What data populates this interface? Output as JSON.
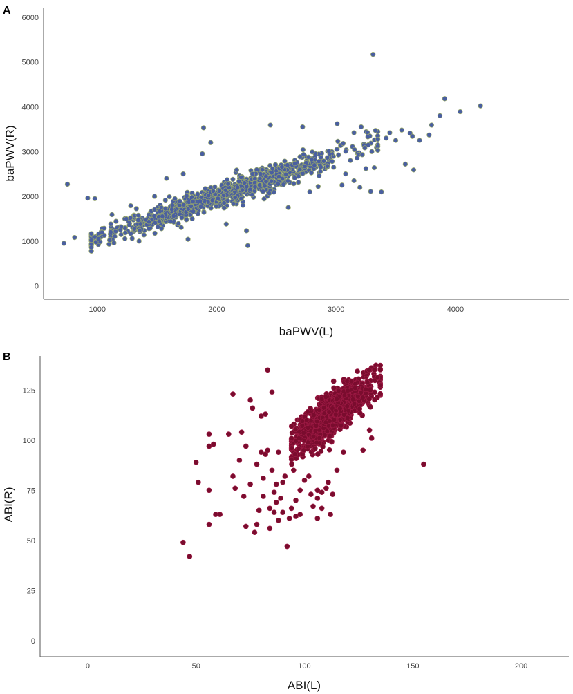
{
  "chart_data": [
    {
      "panel_label": "A",
      "type": "scatter",
      "xlabel": "baPWV(L)",
      "ylabel": "baPWV(R)",
      "xlim": [
        550,
        4950
      ],
      "ylim": [
        -300,
        6200
      ],
      "xticks": [
        1000,
        2000,
        3000,
        4000
      ],
      "yticks": [
        0,
        1000,
        2000,
        3000,
        4000,
        5000,
        6000
      ],
      "marker_fill": "#4a5fa0",
      "marker_stroke": "#9aa96b",
      "cluster": {
        "n": 900,
        "x_mean": 2050,
        "x_sd": 520,
        "x_min": 950,
        "x_max": 3350,
        "slope": 0.93,
        "intercept": 140,
        "noise_sd": 140,
        "seed": 11
      },
      "points": [
        [
          720,
          950
        ],
        [
          750,
          2270
        ],
        [
          810,
          1080
        ],
        [
          920,
          1960
        ],
        [
          980,
          1950
        ],
        [
          980,
          1090
        ],
        [
          1010,
          1050
        ],
        [
          1140,
          960
        ],
        [
          1200,
          1320
        ],
        [
          1280,
          1790
        ],
        [
          1350,
          1000
        ],
        [
          1480,
          2000
        ],
        [
          1580,
          2400
        ],
        [
          1640,
          1560
        ],
        [
          1720,
          2500
        ],
        [
          1760,
          1040
        ],
        [
          1880,
          2950
        ],
        [
          1890,
          3530
        ],
        [
          1950,
          3200
        ],
        [
          2080,
          1380
        ],
        [
          2220,
          1800
        ],
        [
          2250,
          1230
        ],
        [
          2260,
          900
        ],
        [
          2300,
          2500
        ],
        [
          2450,
          3590
        ],
        [
          2600,
          1750
        ],
        [
          2720,
          3550
        ],
        [
          2780,
          2100
        ],
        [
          2850,
          2220
        ],
        [
          2980,
          2650
        ],
        [
          3010,
          3620
        ],
        [
          3050,
          2250
        ],
        [
          3080,
          2500
        ],
        [
          3120,
          2800
        ],
        [
          3150,
          2350
        ],
        [
          3200,
          2200
        ],
        [
          3220,
          2930
        ],
        [
          3250,
          2620
        ],
        [
          3290,
          2110
        ],
        [
          3300,
          3000
        ],
        [
          3310,
          5170
        ],
        [
          3320,
          2640
        ],
        [
          3380,
          2100
        ],
        [
          3420,
          3300
        ],
        [
          3450,
          3420
        ],
        [
          3500,
          3250
        ],
        [
          3550,
          3480
        ],
        [
          3580,
          2720
        ],
        [
          3620,
          3410
        ],
        [
          3640,
          3340
        ],
        [
          3650,
          2590
        ],
        [
          3700,
          3250
        ],
        [
          3780,
          3370
        ],
        [
          3800,
          3590
        ],
        [
          3870,
          3800
        ],
        [
          3910,
          4180
        ],
        [
          4040,
          3890
        ],
        [
          4210,
          4020
        ],
        [
          3210,
          3550
        ],
        [
          3330,
          3470
        ],
        [
          3060,
          3180
        ],
        [
          2940,
          3010
        ],
        [
          3150,
          3420
        ]
      ]
    },
    {
      "panel_label": "B",
      "type": "scatter",
      "xlabel": "ABI(L)",
      "ylabel": "ABI(R)",
      "xlim": [
        -22,
        222
      ],
      "ylim": [
        -8,
        142
      ],
      "xticks": [
        0,
        50,
        100,
        150,
        200
      ],
      "yticks": [
        0,
        25,
        50,
        75,
        100,
        125
      ],
      "marker_fill": "#7a0c2e",
      "marker_stroke": "#9e1b45",
      "cluster": {
        "n": 1000,
        "x_mean": 113,
        "x_sd": 9.5,
        "x_min": 94,
        "x_max": 135,
        "slope": 0.78,
        "intercept": 25,
        "noise_sd": 5.2,
        "seed": 7
      },
      "points": [
        [
          44,
          49
        ],
        [
          47,
          42
        ],
        [
          50,
          89
        ],
        [
          51,
          79
        ],
        [
          56,
          103
        ],
        [
          56,
          97
        ],
        [
          56,
          75
        ],
        [
          56,
          58
        ],
        [
          58,
          98
        ],
        [
          59,
          63
        ],
        [
          61,
          63
        ],
        [
          65,
          103
        ],
        [
          67,
          123
        ],
        [
          67,
          82
        ],
        [
          68,
          76
        ],
        [
          70,
          90
        ],
        [
          71,
          104
        ],
        [
          72,
          72
        ],
        [
          73,
          97
        ],
        [
          73,
          57
        ],
        [
          75,
          120
        ],
        [
          75,
          78
        ],
        [
          76,
          116
        ],
        [
          77,
          54
        ],
        [
          78,
          88
        ],
        [
          78,
          58
        ],
        [
          79,
          65
        ],
        [
          80,
          112
        ],
        [
          80,
          94
        ],
        [
          81,
          81
        ],
        [
          81,
          72
        ],
        [
          82,
          113
        ],
        [
          82,
          93
        ],
        [
          83,
          135
        ],
        [
          83,
          95
        ],
        [
          84,
          66
        ],
        [
          84,
          56
        ],
        [
          85,
          124
        ],
        [
          85,
          85
        ],
        [
          86,
          74
        ],
        [
          86,
          64
        ],
        [
          87,
          78
        ],
        [
          87,
          69
        ],
        [
          88,
          60
        ],
        [
          88,
          94
        ],
        [
          89,
          71
        ],
        [
          90,
          79
        ],
        [
          90,
          64
        ],
        [
          91,
          82
        ],
        [
          92,
          47
        ],
        [
          93,
          61
        ],
        [
          94,
          66
        ],
        [
          95,
          85
        ],
        [
          96,
          70
        ],
        [
          96,
          62
        ],
        [
          98,
          75
        ],
        [
          98,
          63
        ],
        [
          100,
          80
        ],
        [
          102,
          82
        ],
        [
          103,
          73
        ],
        [
          104,
          67
        ],
        [
          106,
          61
        ],
        [
          106,
          71
        ],
        [
          106,
          75
        ],
        [
          108,
          66
        ],
        [
          108,
          74
        ],
        [
          110,
          76
        ],
        [
          112,
          63
        ],
        [
          113,
          73
        ],
        [
          111,
          79
        ],
        [
          115,
          85
        ],
        [
          118,
          94
        ],
        [
          155,
          88
        ],
        [
          127,
          95
        ],
        [
          131,
          101
        ],
        [
          130,
          105
        ]
      ]
    }
  ]
}
